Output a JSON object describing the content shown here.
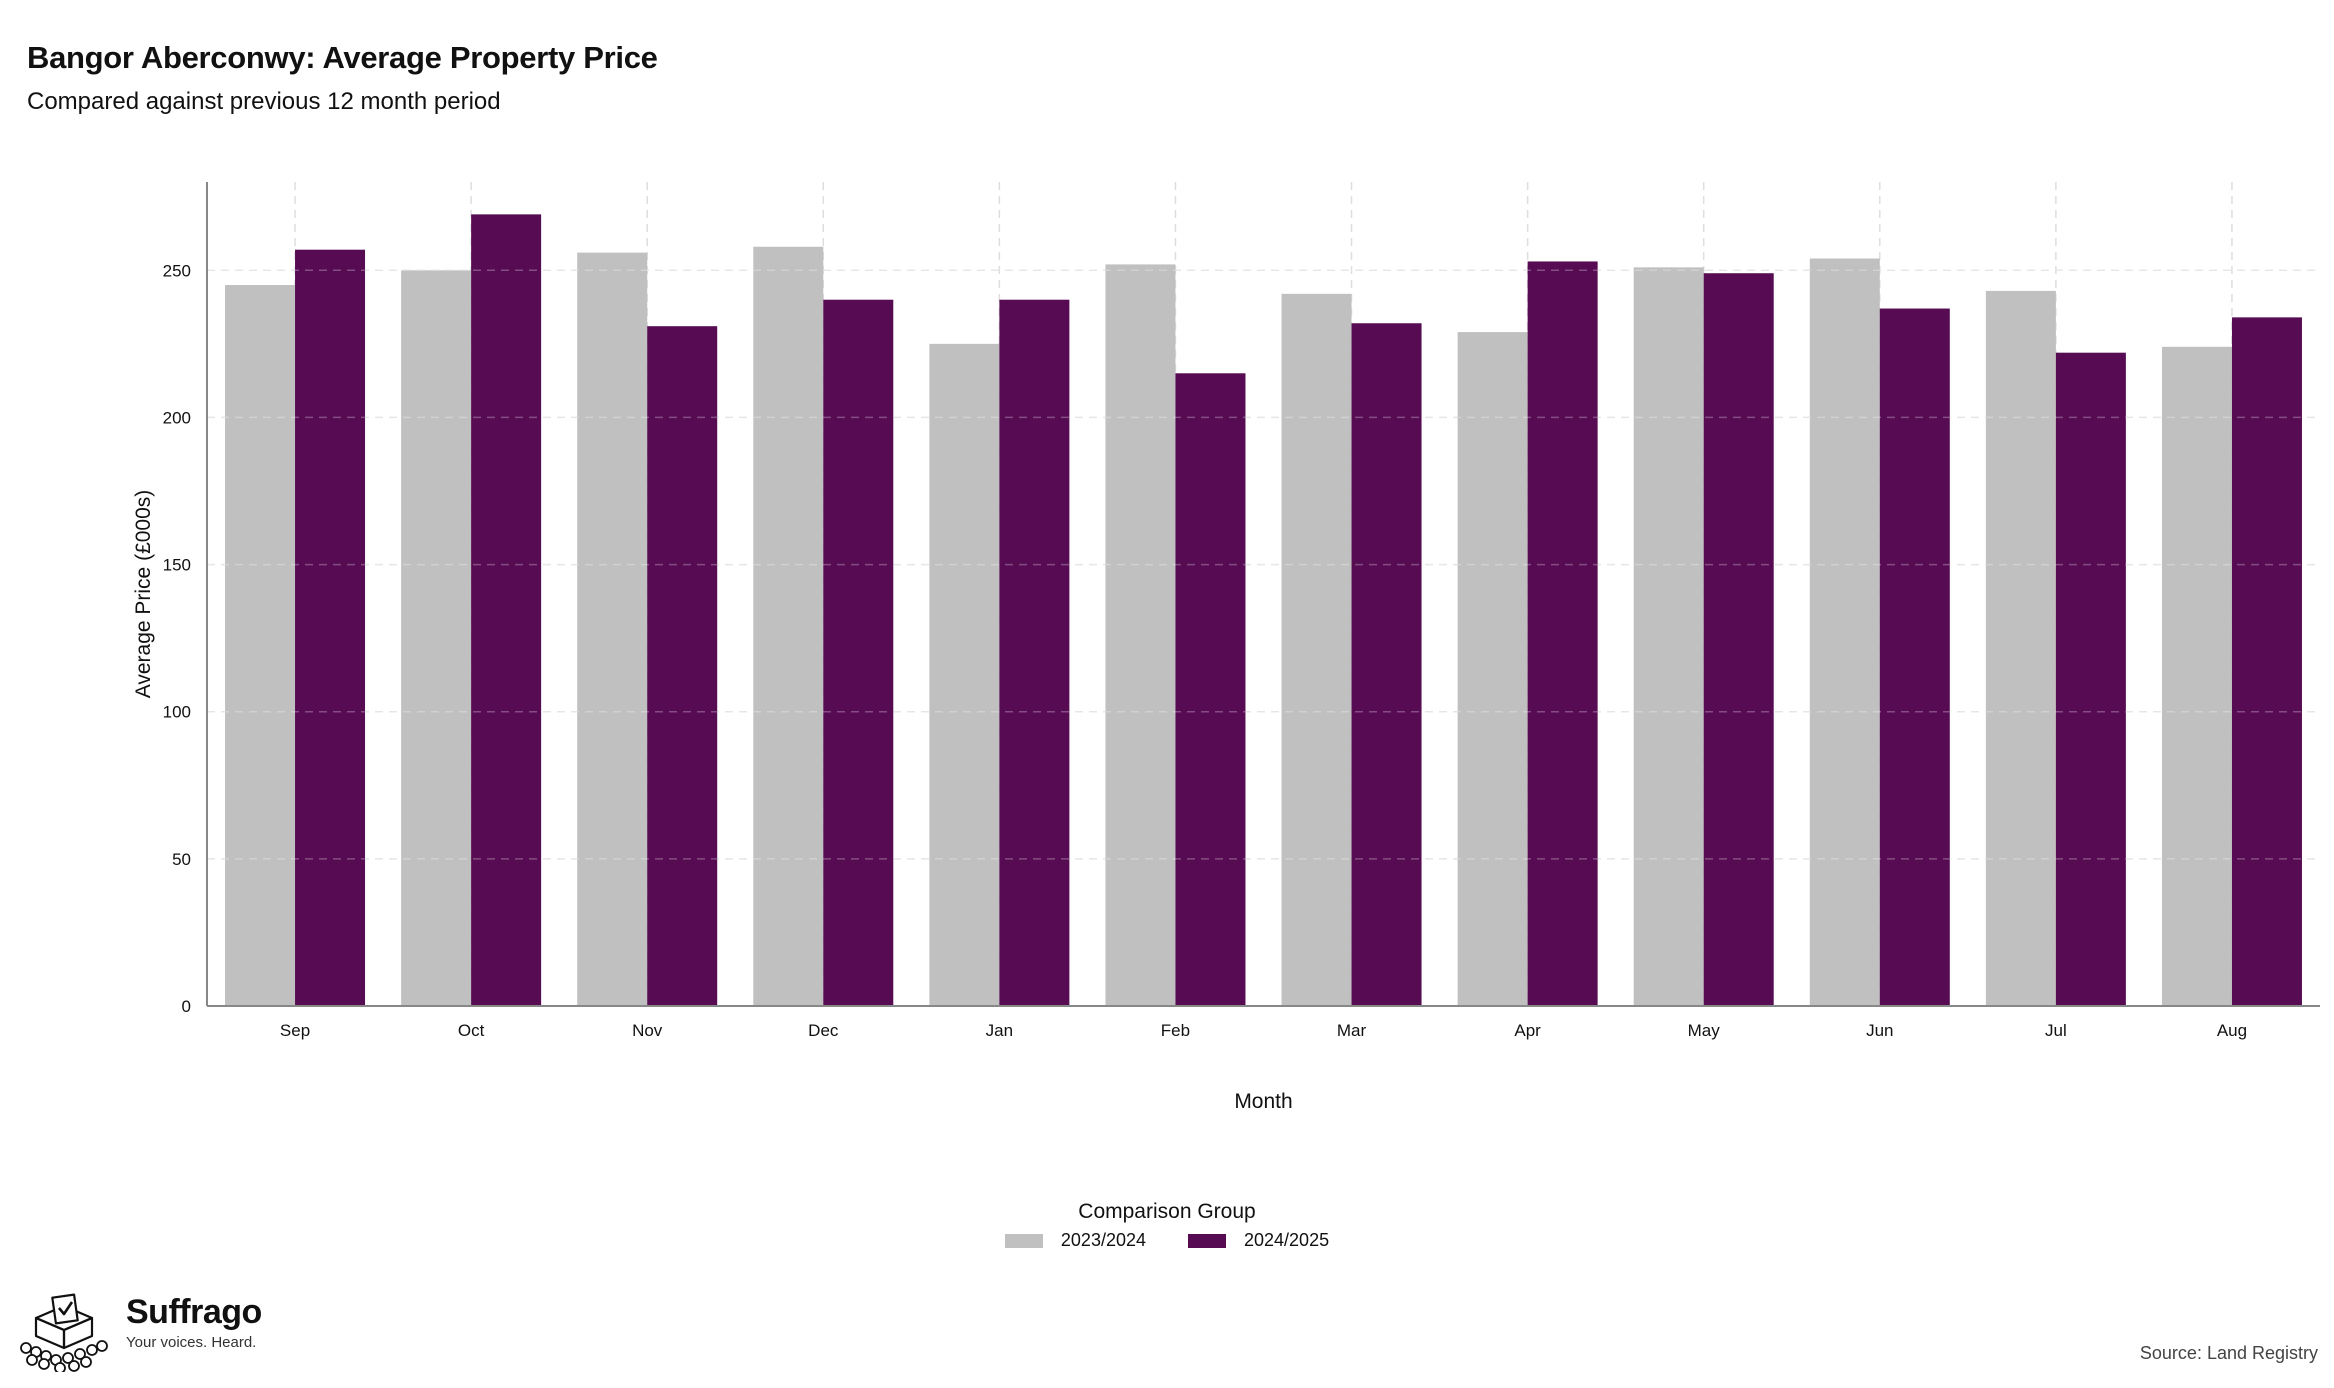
{
  "header": {
    "title": "Bangor Aberconwy: Average Property Price",
    "subtitle": "Compared against previous 12 month period"
  },
  "legend": {
    "title": "Comparison Group"
  },
  "footer": {
    "brand": "Suffrago",
    "tagline": "Your voices. Heard.",
    "source": "Source: Land Registry"
  },
  "colors": {
    "series_a": "#c0c0c0",
    "series_b": "#560b52",
    "grid": "#dedede",
    "axis": "#888888"
  },
  "chart_data": {
    "type": "bar",
    "title": "Bangor Aberconwy: Average Property Price",
    "subtitle": "Compared against previous 12 month period",
    "xlabel": "Month",
    "ylabel": "Average Price (£000s)",
    "ylim": [
      0,
      280
    ],
    "yticks": [
      0,
      50,
      100,
      150,
      200,
      250
    ],
    "grid": true,
    "legend_position": "bottom",
    "categories": [
      "Sep",
      "Oct",
      "Nov",
      "Dec",
      "Jan",
      "Feb",
      "Mar",
      "Apr",
      "May",
      "Jun",
      "Jul",
      "Aug"
    ],
    "series": [
      {
        "name": "2023/2024",
        "values": [
          245,
          250,
          256,
          258,
          225,
          252,
          242,
          229,
          251,
          254,
          243,
          224
        ]
      },
      {
        "name": "2024/2025",
        "values": [
          257,
          269,
          231,
          240,
          240,
          215,
          232,
          253,
          249,
          237,
          222,
          234
        ]
      }
    ]
  }
}
